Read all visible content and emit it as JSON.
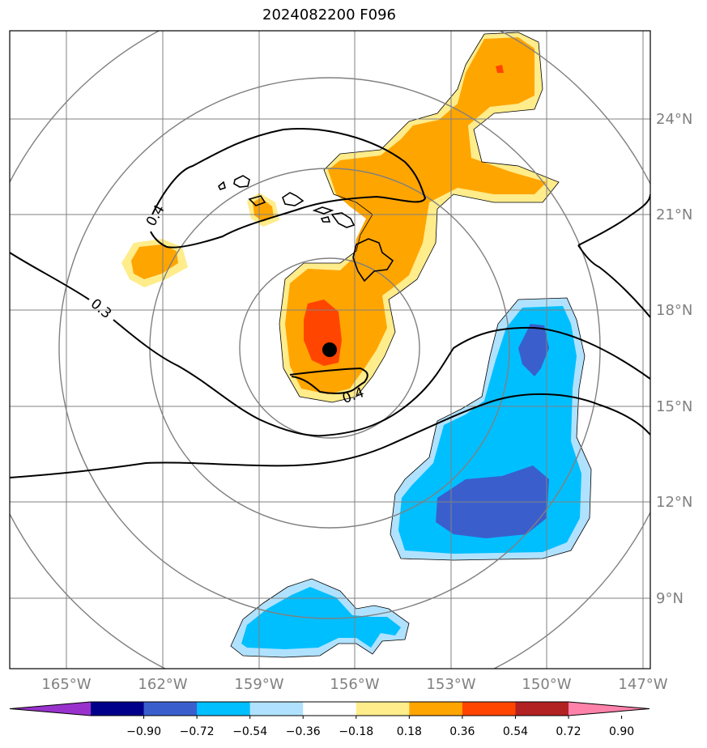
{
  "title": "2024082200 F096",
  "map": {
    "lat_labels": [
      "24°N",
      "21°N",
      "18°N",
      "15°N",
      "12°N",
      "9°N"
    ],
    "lon_labels": [
      "165°W",
      "162°W",
      "159°W",
      "156°W",
      "153°W",
      "150°W",
      "147°W"
    ],
    "contour_labels": [
      "0.4",
      "0.3",
      "0.4"
    ],
    "center_marker": "storm-center"
  },
  "colorbar": {
    "ticks": [
      "−0.90",
      "−0.72",
      "−0.54",
      "−0.36",
      "−0.18",
      "0.18",
      "0.36",
      "0.54",
      "0.72",
      "0.90"
    ],
    "colors": [
      "#9932cc",
      "#00008b",
      "#3a5fcd",
      "#00bfff",
      "#b0e2ff",
      "#ffffff",
      "#ffec8b",
      "#ffa500",
      "#ff4500",
      "#b22222",
      "#ff82ab"
    ]
  },
  "colors": {
    "grid": "#808080",
    "coast": "#000000",
    "pos_light": "#ffec8b",
    "pos_mid": "#ffa500",
    "pos_strong": "#ff4500",
    "neg_light": "#b0e2ff",
    "neg_mid": "#00bfff",
    "neg_strong": "#3a5fcd"
  }
}
